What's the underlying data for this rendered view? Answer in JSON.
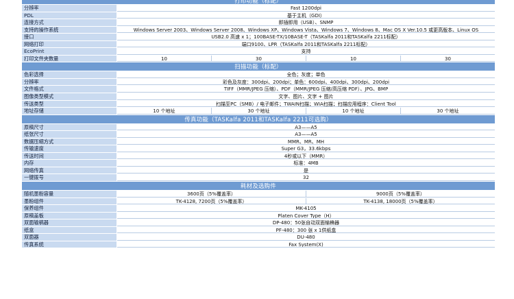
{
  "sections": [
    {
      "title": "打印功能（标配）",
      "rows": [
        {
          "label": "分辨率",
          "values": [
            "Fast 1200dpi"
          ]
        },
        {
          "label": "PDL",
          "values": [
            "基于主机（GDI）"
          ]
        },
        {
          "label": "连接方式",
          "values": [
            "即插即用（USB）、SNMP"
          ]
        },
        {
          "label": "支持的操作系统",
          "values": [
            "Windows Server 2003、Windows Server 2008、Windows XP、Windows Vista、Windows 7、Windows 8、Mac OS X Ver.10.5 或更高版本、Linux OS"
          ]
        },
        {
          "label": "接口",
          "values": [
            "USB2.0 高速 x 1；100BASE-TX/10BASE-T（TASKalfa 2011和TASKalfa 2211标配）"
          ]
        },
        {
          "label": "网络打印",
          "values": [
            "端口9100、LPR（TASKalfa 2011和TASKalfa 2211标配）"
          ]
        },
        {
          "label": "EcoPrint",
          "values": [
            "支持"
          ]
        },
        {
          "label": "打印文件夹数量",
          "values": [
            "10",
            "30",
            "10",
            "30"
          ]
        }
      ]
    },
    {
      "title": "扫描功能（标配）",
      "rows": [
        {
          "label": "色彩选择",
          "values": [
            "全色；灰度；单色"
          ]
        },
        {
          "label": "分辨率",
          "values": [
            "彩色及灰度：300dpi、200dpi；单色：600dpi、400dpi、300dpi、200dpi"
          ]
        },
        {
          "label": "文件格式",
          "values": [
            "TIFF（MMR/JPEG 压缩）、PDF（MMR/JPEG 压缩/高压缩 PDF）、JPG、BMP"
          ]
        },
        {
          "label": "图像类型模式",
          "values": [
            "文字、图片、文字 + 图片"
          ]
        },
        {
          "label": "传送类型",
          "values": [
            "扫描至PC（SMB）/ 电子邮件；TWAIN扫描；WIA扫描；扫描应用程序：Client Tool"
          ]
        },
        {
          "label": "地址存储",
          "values": [
            "10 个地址",
            "30 个地址",
            "10 个地址",
            "30 个地址"
          ]
        }
      ]
    },
    {
      "title": "传真功能（TASKalfa 2011和TASKalfa 2211可选购）",
      "rows": [
        {
          "label": "原稿尺寸",
          "values": [
            "A3——A5"
          ]
        },
        {
          "label": "纸张尺寸",
          "values": [
            "A3——A5"
          ]
        },
        {
          "label": "数据压缩方式",
          "values": [
            "MMR、MR、MH"
          ]
        },
        {
          "label": "传输速度",
          "values": [
            "Super G3，33.6kbps"
          ]
        },
        {
          "label": "传送时间",
          "values": [
            "4秒或以下（MMR）"
          ]
        },
        {
          "label": "内存",
          "values": [
            "标准：4MB"
          ]
        },
        {
          "label": "网络传真",
          "values": [
            "是"
          ]
        },
        {
          "label": "一键拨号",
          "values": [
            "32"
          ]
        }
      ]
    },
    {
      "title": "耗材及选购件",
      "rows": [
        {
          "label": "随机墨粉容量",
          "values": [
            "3600页（5%覆盖率）",
            "9000页（5%覆盖率）"
          ]
        },
        {
          "label": "墨粉组件",
          "values": [
            "TK-4128, 7200页（5%覆盖率）",
            "TK-4138, 18000页（5%覆盖率）"
          ]
        },
        {
          "label": "保养组件",
          "values": [
            "MK-4105"
          ]
        },
        {
          "label": "原稿盖板",
          "values": [
            "Platen Cover Type（H）"
          ]
        },
        {
          "label": "双面输稿器",
          "values": [
            "DP-480：50张自动双面输稿器"
          ]
        },
        {
          "label": "纸盒",
          "values": [
            "PF-480：300 张 x 1供纸盒"
          ]
        },
        {
          "label": "双面器",
          "values": [
            "DU-480"
          ]
        },
        {
          "label": "传真系统",
          "values": [
            "Fax System(X)"
          ]
        }
      ]
    }
  ]
}
